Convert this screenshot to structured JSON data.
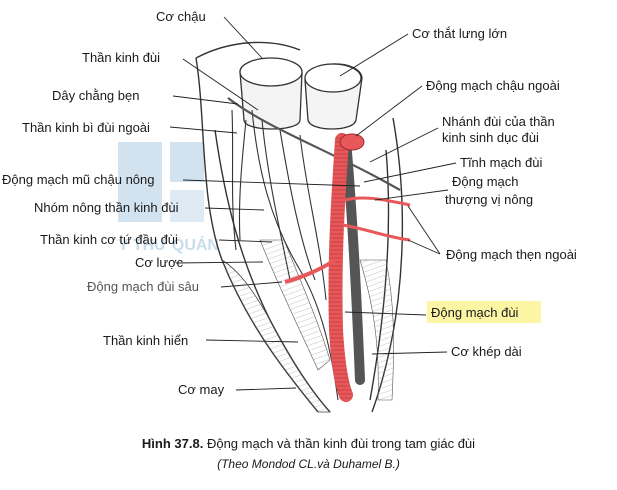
{
  "labels": {
    "co_chau": "Cơ chậu",
    "than_kinh_dui": "Thần kinh đùi",
    "day_chang_ben": "Dây chằng bẹn",
    "than_kinh_bi_dui_ngoai": "Thần kinh bì đùi ngoài",
    "dong_mach_mu_chau_nong": "Động mạch mũ chậu nông",
    "nhom_nong_than_kinh_dui": "Nhóm nông thần kinh đùi",
    "than_kinh_co_tu_dau_dui": "Thần kinh cơ tứ đầu đùi",
    "co_luoc": "Cơ lược",
    "dong_mach_dui_sau": "Động mạch đùi sâu",
    "than_kinh_hien": "Thần kinh hiển",
    "co_may": "Cơ may",
    "co_that_lung_lon": "Cơ thắt lưng lớn",
    "dong_mach_chau_ngoai": "Động mạch chậu ngoài",
    "nhanh_dui_line1": "Nhánh đùi của thần",
    "nhanh_dui_line2": "kinh sinh dục đùi",
    "tinh_mach_dui": "Tĩnh mạch đùi",
    "dm_thuong_vi_line1": "Động mạch",
    "dm_thuong_vi_line2": "thượng vị nông",
    "dong_mach_then_ngoai": "Động mạch thẹn ngoài",
    "dong_mach_dui": "Động mạch đùi",
    "co_khep_dai": "Cơ khép dài"
  },
  "caption": {
    "figure_number": "Hình 37.8.",
    "title": " Động mạch và thần kinh đùi trong tam giác đùi",
    "source": "(Theo Mondod CL.và Duhamel B.)"
  },
  "watermark": {
    "text": "Y THƯ QUÁN"
  },
  "colors": {
    "artery": "#e8575a",
    "artery_dark": "#c0393c",
    "ink": "#1a1a1a",
    "highlight": "#fbf5a4",
    "watermark": "#9cc2dc"
  }
}
